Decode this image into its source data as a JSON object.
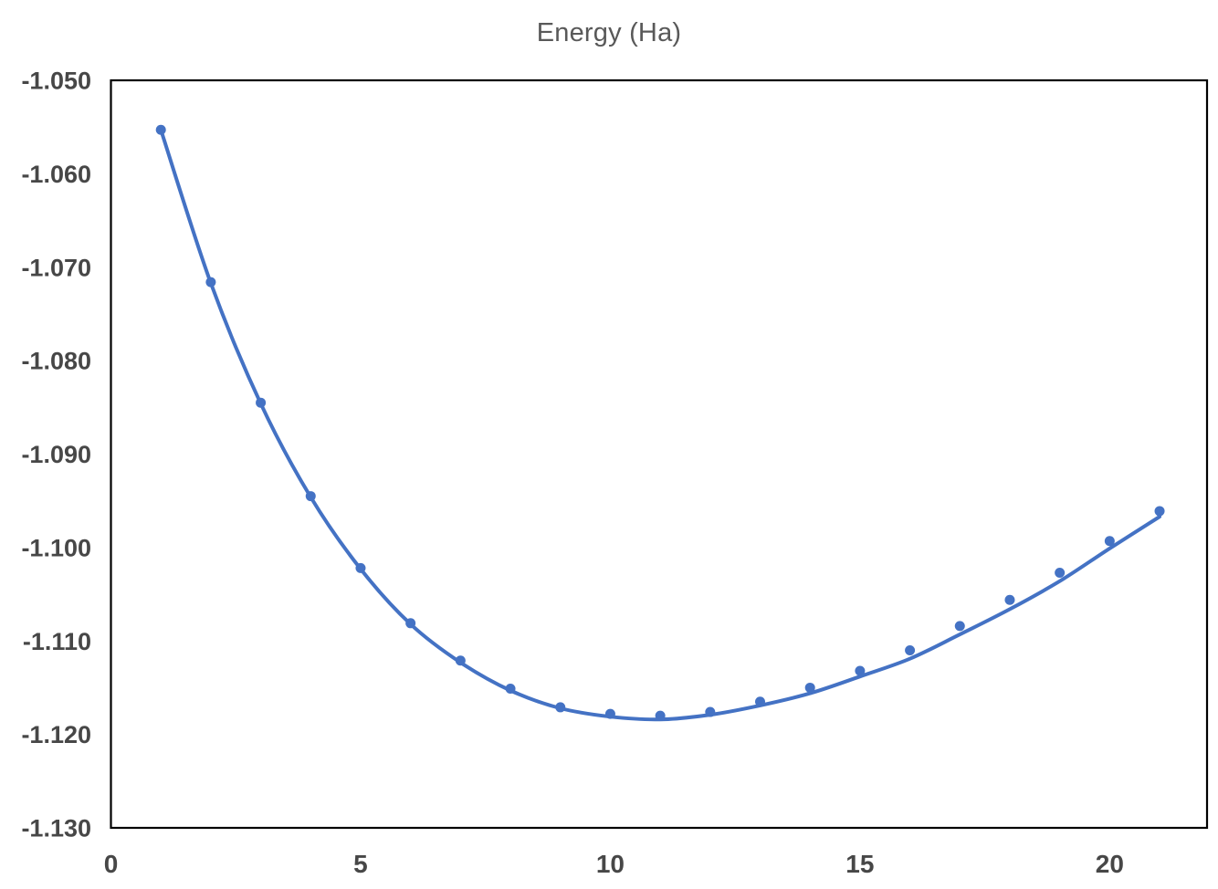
{
  "chart_data": {
    "type": "scatter",
    "title": "Energy (Ha)",
    "xlabel": "",
    "ylabel": "",
    "legend_position": "none",
    "grid": false,
    "xlim": [
      0,
      21.95
    ],
    "ylim": [
      -1.13,
      -1.05
    ],
    "x_ticks": [
      0,
      5,
      10,
      15,
      20
    ],
    "y_ticks": [
      -1.05,
      -1.06,
      -1.07,
      -1.08,
      -1.09,
      -1.1,
      -1.11,
      -1.12,
      -1.13
    ],
    "y_tick_labels": [
      "-1.050",
      "-1.060",
      "-1.070",
      "-1.080",
      "-1.090",
      "-1.100",
      "-1.110",
      "-1.120",
      "-1.130"
    ],
    "x": [
      1,
      2,
      3,
      4,
      5,
      6,
      7,
      8,
      9,
      10,
      11,
      12,
      13,
      14,
      15,
      16,
      17,
      18,
      19,
      20,
      21
    ],
    "series": [
      {
        "name": "Energy (Ha)",
        "style": "points",
        "marker": "circle",
        "marker_color": "#4472C4",
        "values": [
          -1.0553,
          -1.0716,
          -1.0845,
          -1.0945,
          -1.1022,
          -1.1081,
          -1.1121,
          -1.1151,
          -1.1171,
          -1.1178,
          -1.118,
          -1.1176,
          -1.1165,
          -1.115,
          -1.1132,
          -1.111,
          -1.1084,
          -1.1056,
          -1.1027,
          -1.0993,
          -1.0961
        ]
      }
    ],
    "trendline": {
      "name": "smooth-fit-curve",
      "color": "#4472C4",
      "values": [
        -1.0553,
        -1.0717,
        -1.0846,
        -1.0946,
        -1.1023,
        -1.1082,
        -1.1123,
        -1.1153,
        -1.1172,
        -1.1181,
        -1.1184,
        -1.1179,
        -1.1169,
        -1.1156,
        -1.1138,
        -1.1119,
        -1.1093,
        -1.1066,
        -1.1036,
        -1.1001,
        -1.0967
      ]
    },
    "colors": {
      "accent": "#4472C4",
      "title_text": "#595959",
      "axis_text": "#474747",
      "plot_border": "#000000",
      "background": "#ffffff"
    }
  }
}
